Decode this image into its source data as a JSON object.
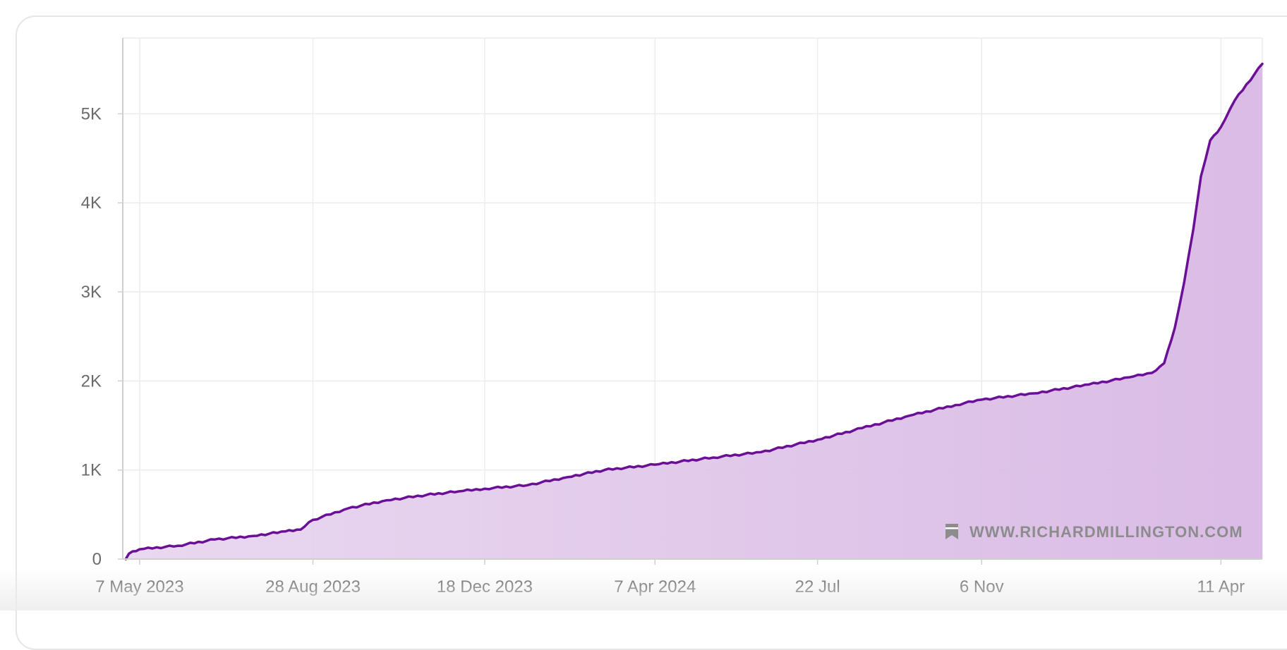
{
  "colors": {
    "line": "#6a0f96",
    "fill": "#d8b8e4",
    "grid": "#ececec",
    "axis": "#cfcfcf",
    "watermark": "#8c8c8c"
  },
  "watermark": {
    "icon": "bookmark-icon",
    "text": "WWW.RICHARDMILLINGTON.COM"
  },
  "chart_data": {
    "type": "area",
    "title": "",
    "xlabel": "",
    "ylabel": "",
    "grid": true,
    "ylim": [
      0,
      5850
    ],
    "xlim": [
      "2023-04-26",
      "2025-05-08"
    ],
    "y_ticks": [
      {
        "value": 0,
        "label": "0"
      },
      {
        "value": 1000,
        "label": "1K"
      },
      {
        "value": 2000,
        "label": "2K"
      },
      {
        "value": 3000,
        "label": "3K"
      },
      {
        "value": 4000,
        "label": "4K"
      },
      {
        "value": 5000,
        "label": "5K"
      }
    ],
    "x_ticks": [
      {
        "date": "2023-05-07",
        "label": "7 May 2023"
      },
      {
        "date": "2023-08-28",
        "label": "28 Aug 2023"
      },
      {
        "date": "2023-12-18",
        "label": "18 Dec 2023"
      },
      {
        "date": "2024-04-07",
        "label": "7 Apr 2024"
      },
      {
        "date": "2024-07-22",
        "label": "22 Jul"
      },
      {
        "date": "2024-11-06",
        "label": "6 Nov"
      },
      {
        "date": "2025-04-11",
        "label": "11 Apr"
      }
    ],
    "series": [
      {
        "points": [
          [
            "2023-04-28",
            0
          ],
          [
            "2023-04-30",
            60
          ],
          [
            "2023-05-07",
            110
          ],
          [
            "2023-06-01",
            150
          ],
          [
            "2023-06-25",
            220
          ],
          [
            "2023-07-20",
            260
          ],
          [
            "2023-08-10",
            310
          ],
          [
            "2023-08-20",
            330
          ],
          [
            "2023-08-28",
            440
          ],
          [
            "2023-09-20",
            570
          ],
          [
            "2023-10-15",
            660
          ],
          [
            "2023-11-10",
            720
          ],
          [
            "2023-12-01",
            760
          ],
          [
            "2023-12-18",
            790
          ],
          [
            "2024-01-15",
            830
          ],
          [
            "2024-02-10",
            920
          ],
          [
            "2024-03-05",
            1000
          ],
          [
            "2024-04-07",
            1060
          ],
          [
            "2024-05-15",
            1140
          ],
          [
            "2024-06-15",
            1200
          ],
          [
            "2024-07-22",
            1340
          ],
          [
            "2024-08-20",
            1470
          ],
          [
            "2024-09-20",
            1610
          ],
          [
            "2024-10-20",
            1730
          ],
          [
            "2024-11-06",
            1790
          ],
          [
            "2024-12-10",
            1860
          ],
          [
            "2025-01-15",
            1960
          ],
          [
            "2025-02-10",
            2040
          ],
          [
            "2025-02-25",
            2090
          ],
          [
            "2025-03-05",
            2200
          ],
          [
            "2025-03-12",
            2600
          ],
          [
            "2025-03-18",
            3100
          ],
          [
            "2025-03-24",
            3700
          ],
          [
            "2025-03-29",
            4300
          ],
          [
            "2025-04-04",
            4700
          ],
          [
            "2025-04-11",
            4850
          ],
          [
            "2025-04-20",
            5150
          ],
          [
            "2025-05-08",
            5560
          ]
        ]
      }
    ]
  }
}
